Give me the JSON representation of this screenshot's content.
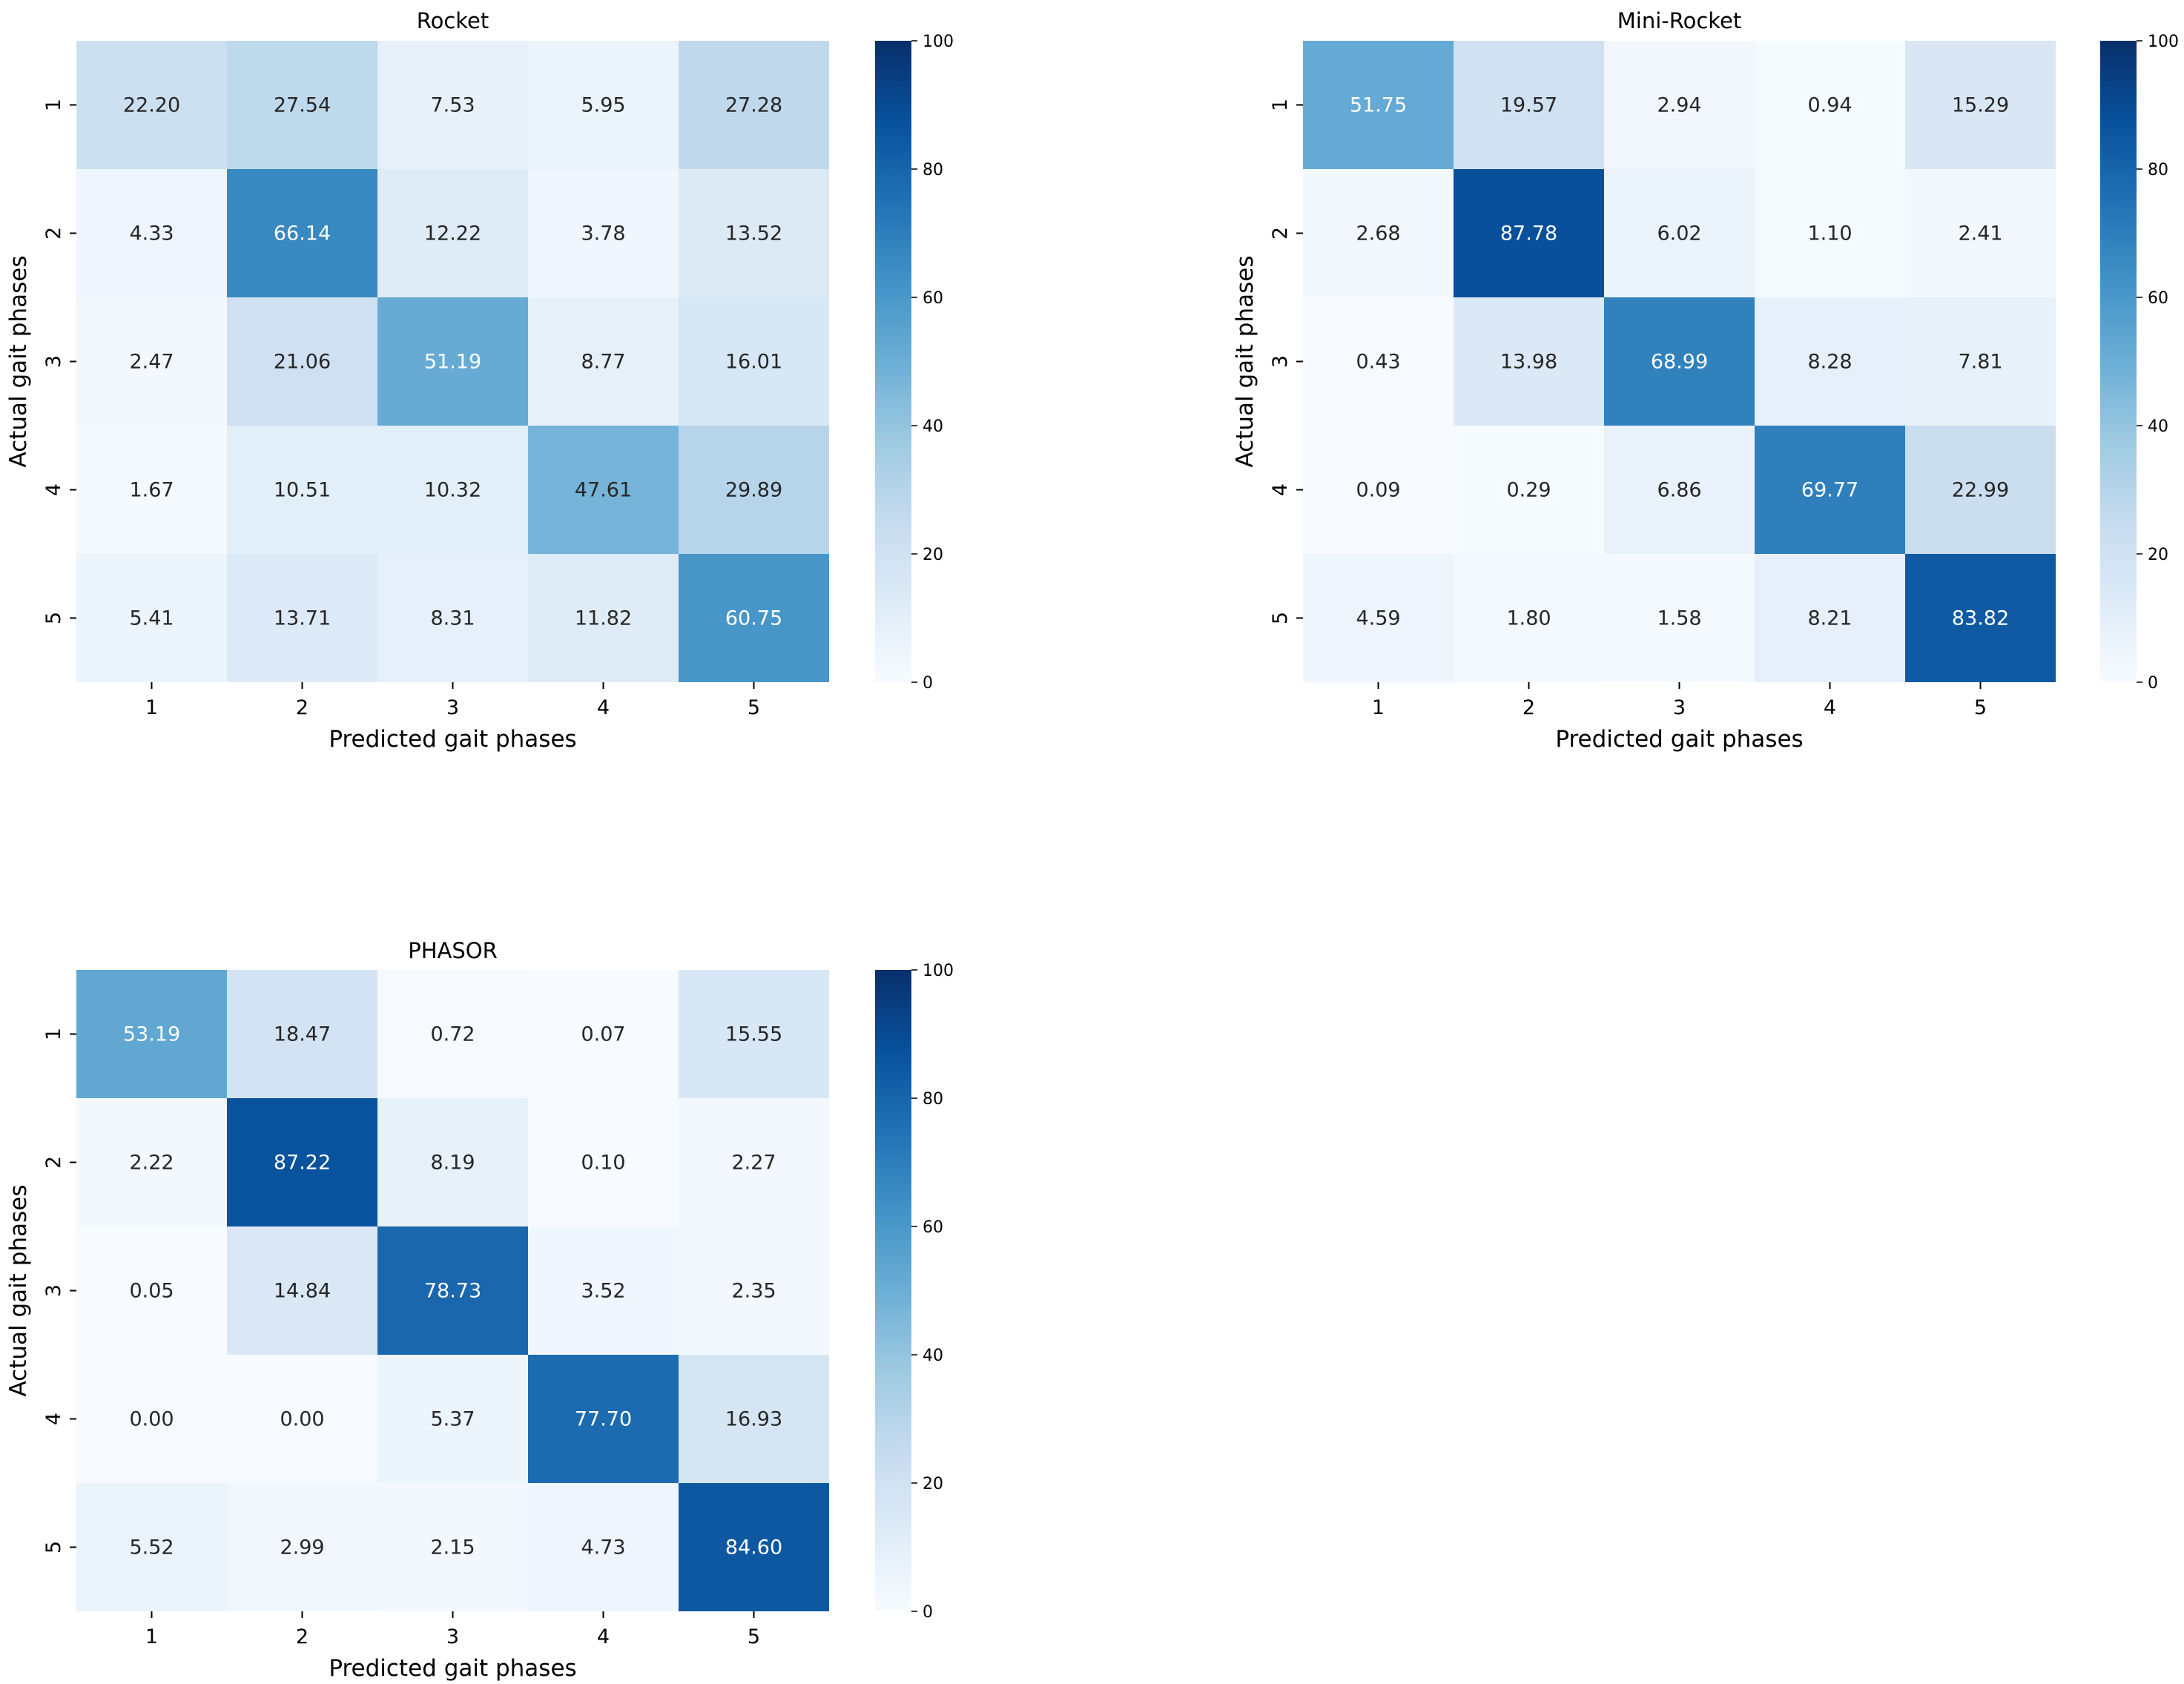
{
  "chart_data": [
    {
      "type": "heatmap",
      "title": "Rocket",
      "xlabel": "Predicted gait phases",
      "ylabel": "Actual gait phases",
      "x_categories": [
        "1",
        "2",
        "3",
        "4",
        "5"
      ],
      "y_categories": [
        "1",
        "2",
        "3",
        "4",
        "5"
      ],
      "values": [
        [
          "22.20",
          "27.54",
          "7.53",
          "5.95",
          "27.28"
        ],
        [
          "4.33",
          "66.14",
          "12.22",
          "3.78",
          "13.52"
        ],
        [
          "2.47",
          "21.06",
          "51.19",
          "8.77",
          "16.01"
        ],
        [
          "1.67",
          "10.51",
          "10.32",
          "47.61",
          "29.89"
        ],
        [
          "5.41",
          "13.71",
          "8.31",
          "11.82",
          "60.75"
        ]
      ],
      "colorbar": {
        "min": 0,
        "max": 100,
        "ticks": [
          "0",
          "20",
          "40",
          "60",
          "80",
          "100"
        ],
        "colormap": "Blues"
      }
    },
    {
      "type": "heatmap",
      "title": "Mini-Rocket",
      "xlabel": "Predicted gait phases",
      "ylabel": "Actual gait phases",
      "x_categories": [
        "1",
        "2",
        "3",
        "4",
        "5"
      ],
      "y_categories": [
        "1",
        "2",
        "3",
        "4",
        "5"
      ],
      "values": [
        [
          "51.75",
          "19.57",
          "2.94",
          "0.94",
          "15.29"
        ],
        [
          "2.68",
          "87.78",
          "6.02",
          "1.10",
          "2.41"
        ],
        [
          "0.43",
          "13.98",
          "68.99",
          "8.28",
          "7.81"
        ],
        [
          "0.09",
          "0.29",
          "6.86",
          "69.77",
          "22.99"
        ],
        [
          "4.59",
          "1.80",
          "1.58",
          "8.21",
          "83.82"
        ]
      ],
      "colorbar": {
        "min": 0,
        "max": 100,
        "ticks": [
          "0",
          "20",
          "40",
          "60",
          "80",
          "100"
        ],
        "colormap": "Blues"
      }
    },
    {
      "type": "heatmap",
      "title": "PHASOR",
      "xlabel": "Predicted gait phases",
      "ylabel": "Actual gait phases",
      "x_categories": [
        "1",
        "2",
        "3",
        "4",
        "5"
      ],
      "y_categories": [
        "1",
        "2",
        "3",
        "4",
        "5"
      ],
      "values": [
        [
          "53.19",
          "18.47",
          "0.72",
          "0.07",
          "15.55"
        ],
        [
          "2.22",
          "87.22",
          "8.19",
          "0.10",
          "2.27"
        ],
        [
          "0.05",
          "14.84",
          "78.73",
          "3.52",
          "2.35"
        ],
        [
          "0.00",
          "0.00",
          "5.37",
          "77.70",
          "16.93"
        ],
        [
          "5.52",
          "2.99",
          "2.15",
          "4.73",
          "84.60"
        ]
      ],
      "colorbar": {
        "min": 0,
        "max": 100,
        "ticks": [
          "0",
          "20",
          "40",
          "60",
          "80",
          "100"
        ],
        "colormap": "Blues"
      }
    }
  ]
}
